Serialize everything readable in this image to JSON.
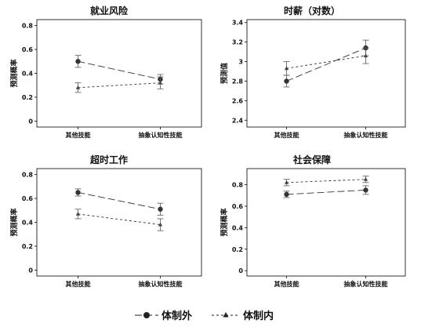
{
  "chart_data": [
    {
      "type": "line",
      "title": "就业风险",
      "ylabel": "预测概率",
      "categories": [
        "其他技能",
        "抽象认知性技能"
      ],
      "ylim": [
        -0.05,
        0.85
      ],
      "yticks": [
        "0",
        "0.2",
        "0.4",
        "0.6",
        "0.8"
      ],
      "series": [
        {
          "name": "体制外",
          "values": [
            0.5,
            0.35
          ],
          "ci": [
            [
              0.45,
              0.55
            ],
            [
              0.31,
              0.39
            ]
          ]
        },
        {
          "name": "体制内",
          "values": [
            0.28,
            0.32
          ],
          "ci": [
            [
              0.24,
              0.32
            ],
            [
              0.27,
              0.37
            ]
          ]
        }
      ]
    },
    {
      "type": "line",
      "title": "时薪（对数）",
      "ylabel": "预测值",
      "categories": [
        "其他技能",
        "抽象认知性技能"
      ],
      "ylim": [
        2.33,
        3.43
      ],
      "yticks": [
        "2.4",
        "2.6",
        "2.8",
        "3",
        "3.2",
        "3.4"
      ],
      "series": [
        {
          "name": "体制外",
          "values": [
            2.8,
            3.14
          ],
          "ci": [
            [
              2.74,
              2.86
            ],
            [
              3.06,
              3.22
            ]
          ]
        },
        {
          "name": "体制内",
          "values": [
            2.93,
            3.06
          ],
          "ci": [
            [
              2.86,
              3.0
            ],
            [
              2.98,
              3.14
            ]
          ]
        }
      ]
    },
    {
      "type": "line",
      "title": "超时工作",
      "ylabel": "预测概率",
      "categories": [
        "其他技能",
        "抽象认知性技能"
      ],
      "ylim": [
        -0.05,
        0.85
      ],
      "yticks": [
        "0",
        "0.2",
        "0.4",
        "0.6",
        "0.8"
      ],
      "series": [
        {
          "name": "体制外",
          "values": [
            0.65,
            0.51
          ],
          "ci": [
            [
              0.62,
              0.68
            ],
            [
              0.46,
              0.56
            ]
          ]
        },
        {
          "name": "体制内",
          "values": [
            0.47,
            0.38
          ],
          "ci": [
            [
              0.43,
              0.51
            ],
            [
              0.33,
              0.43
            ]
          ]
        }
      ]
    },
    {
      "type": "line",
      "title": "社会保障",
      "ylabel": "预测概率",
      "categories": [
        "其他技能",
        "抽象认知性技能"
      ],
      "ylim": [
        -0.05,
        0.95
      ],
      "yticks": [
        "0",
        "0.2",
        "0.4",
        "0.6",
        "0.8"
      ],
      "series": [
        {
          "name": "体制外",
          "values": [
            0.71,
            0.75
          ],
          "ci": [
            [
              0.68,
              0.74
            ],
            [
              0.71,
              0.79
            ]
          ]
        },
        {
          "name": "体制内",
          "values": [
            0.82,
            0.85
          ],
          "ci": [
            [
              0.79,
              0.85
            ],
            [
              0.82,
              0.88
            ]
          ]
        }
      ]
    }
  ],
  "legend": {
    "position": "bottom-center",
    "items": [
      {
        "label": "体制外",
        "marker": "circle",
        "line": "long-dash"
      },
      {
        "label": "体制内",
        "marker": "triangle",
        "line": "short-dash"
      }
    ]
  }
}
